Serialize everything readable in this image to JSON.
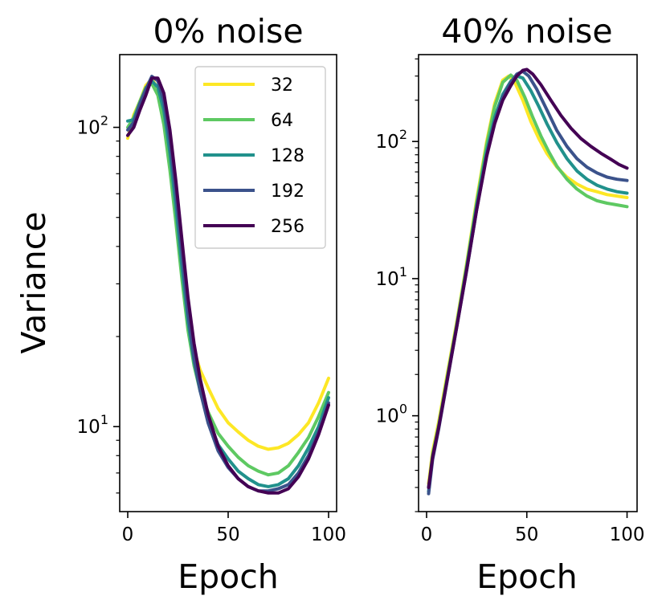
{
  "figure": {
    "ylabel": "Variance"
  },
  "chart_data": [
    {
      "type": "line",
      "title": "0% noise",
      "xlabel": "Epoch",
      "ylabel": "Variance",
      "yscale": "log",
      "xlim": [
        -4,
        104
      ],
      "ylim": [
        5.2,
        175
      ],
      "xticks": [
        0,
        50,
        100
      ],
      "yticks": [
        {
          "value": 10,
          "base": "10",
          "exp": "1"
        },
        {
          "value": 100,
          "base": "10",
          "exp": "2"
        }
      ],
      "legend": {
        "position": "top-right"
      },
      "series": [
        {
          "name": "32",
          "color": "#fde725",
          "x": [
            0,
            3,
            6,
            9,
            12,
            15,
            18,
            21,
            24,
            27,
            30,
            33,
            36,
            40,
            45,
            50,
            55,
            60,
            65,
            70,
            75,
            80,
            85,
            90,
            95,
            100
          ],
          "y": [
            92,
            110,
            122,
            138,
            145,
            135,
            112,
            82,
            56,
            36,
            24,
            18,
            15.5,
            13.5,
            11.5,
            10.3,
            9.6,
            9.0,
            8.6,
            8.4,
            8.5,
            8.8,
            9.4,
            10.3,
            12,
            14.5
          ]
        },
        {
          "name": "64",
          "color": "#5ec962",
          "x": [
            0,
            3,
            6,
            9,
            12,
            15,
            18,
            21,
            24,
            27,
            30,
            33,
            36,
            40,
            45,
            50,
            55,
            60,
            65,
            70,
            75,
            80,
            85,
            90,
            95,
            100
          ],
          "y": [
            100,
            108,
            122,
            136,
            140,
            128,
            102,
            72,
            48,
            31,
            21,
            16,
            13.2,
            11.2,
            9.5,
            8.6,
            7.9,
            7.4,
            7.1,
            6.9,
            7.0,
            7.4,
            8.2,
            9.2,
            10.8,
            13
          ]
        },
        {
          "name": "128",
          "color": "#21918c",
          "x": [
            0,
            3,
            6,
            9,
            12,
            15,
            18,
            21,
            24,
            27,
            30,
            33,
            36,
            40,
            45,
            50,
            55,
            60,
            65,
            70,
            75,
            80,
            85,
            90,
            95,
            100
          ],
          "y": [
            105,
            106,
            120,
            132,
            143,
            136,
            114,
            82,
            54,
            34,
            22.5,
            16.5,
            13.2,
            10.6,
            8.7,
            7.8,
            7.1,
            6.7,
            6.4,
            6.3,
            6.4,
            6.7,
            7.4,
            8.5,
            10,
            12.5
          ]
        },
        {
          "name": "192",
          "color": "#3b528b",
          "x": [
            0,
            3,
            6,
            9,
            12,
            15,
            18,
            21,
            24,
            27,
            30,
            33,
            36,
            40,
            45,
            50,
            55,
            60,
            65,
            70,
            75,
            80,
            85,
            90,
            95,
            100
          ],
          "y": [
            98,
            104,
            120,
            134,
            148,
            143,
            122,
            90,
            60,
            38,
            24,
            17,
            13.2,
            10.3,
            8.3,
            7.3,
            6.7,
            6.3,
            6.1,
            6.1,
            6.2,
            6.4,
            7.0,
            8.0,
            9.6,
            12
          ]
        },
        {
          "name": "256",
          "color": "#440154",
          "x": [
            0,
            3,
            6,
            9,
            12,
            15,
            18,
            21,
            24,
            27,
            30,
            33,
            36,
            40,
            45,
            50,
            55,
            60,
            65,
            70,
            75,
            80,
            85,
            90,
            95,
            100
          ],
          "y": [
            94,
            100,
            114,
            128,
            146,
            146,
            130,
            98,
            66,
            42,
            27,
            19,
            14.5,
            11,
            8.6,
            7.4,
            6.7,
            6.3,
            6.1,
            6.0,
            6.0,
            6.2,
            6.8,
            7.8,
            9.4,
            11.8
          ]
        }
      ]
    },
    {
      "type": "line",
      "title": "40% noise",
      "xlabel": "Epoch",
      "ylabel": "",
      "yscale": "log",
      "xlim": [
        -4,
        105
      ],
      "ylim": [
        0.2,
        430
      ],
      "xticks": [
        0,
        50,
        100
      ],
      "yticks": [
        {
          "value": 1,
          "base": "10",
          "exp": "0"
        },
        {
          "value": 10,
          "base": "10",
          "exp": "1"
        },
        {
          "value": 100,
          "base": "10",
          "exp": "2"
        }
      ],
      "legend": null,
      "series": [
        {
          "name": "32",
          "color": "#fde725",
          "x": [
            1,
            3,
            6,
            10,
            15,
            20,
            25,
            30,
            34,
            38,
            41,
            44,
            48,
            52,
            56,
            60,
            65,
            70,
            75,
            80,
            85,
            90,
            95,
            100
          ],
          "y": [
            0.32,
            0.55,
            0.9,
            1.9,
            4.8,
            13,
            38,
            100,
            190,
            280,
            300,
            270,
            200,
            140,
            105,
            82,
            65,
            55,
            49,
            45,
            43,
            41,
            40,
            39
          ]
        },
        {
          "name": "64",
          "color": "#5ec962",
          "x": [
            1,
            3,
            6,
            10,
            15,
            20,
            25,
            30,
            34,
            38,
            42,
            45,
            49,
            53,
            57,
            61,
            65,
            70,
            75,
            80,
            85,
            90,
            95,
            100
          ],
          "y": [
            0.3,
            0.52,
            0.85,
            1.8,
            4.6,
            12.5,
            36,
            95,
            180,
            270,
            305,
            280,
            210,
            150,
            110,
            84,
            66,
            53,
            45,
            40,
            37,
            35.5,
            34.5,
            33.5
          ]
        },
        {
          "name": "128",
          "color": "#21918c",
          "x": [
            1,
            3,
            6,
            10,
            15,
            20,
            25,
            30,
            34,
            38,
            42,
            45,
            48,
            52,
            56,
            60,
            65,
            70,
            75,
            80,
            85,
            90,
            95,
            100
          ],
          "y": [
            0.28,
            0.5,
            0.82,
            1.75,
            4.5,
            12,
            34,
            85,
            150,
            220,
            275,
            300,
            290,
            235,
            180,
            135,
            98,
            75,
            61,
            53,
            48,
            45,
            43,
            42
          ]
        },
        {
          "name": "192",
          "color": "#3b528b",
          "x": [
            1,
            3,
            6,
            10,
            15,
            20,
            25,
            30,
            34,
            38,
            42,
            45,
            48,
            51,
            55,
            60,
            65,
            70,
            75,
            80,
            85,
            90,
            95,
            100
          ],
          "y": [
            0.27,
            0.48,
            0.8,
            1.7,
            4.4,
            11.5,
            32,
            80,
            140,
            210,
            270,
            310,
            325,
            300,
            240,
            170,
            120,
            92,
            75,
            65,
            59,
            55,
            53,
            52
          ]
        },
        {
          "name": "256",
          "color": "#440154",
          "x": [
            1,
            3,
            6,
            10,
            15,
            20,
            25,
            30,
            34,
            38,
            42,
            45,
            48,
            50,
            53,
            57,
            62,
            67,
            72,
            77,
            82,
            87,
            92,
            96,
            100
          ],
          "y": [
            0.3,
            0.5,
            0.82,
            1.72,
            4.4,
            11.6,
            32,
            78,
            135,
            200,
            255,
            300,
            330,
            335,
            310,
            260,
            200,
            155,
            125,
            105,
            92,
            82,
            74,
            68,
            64
          ]
        }
      ]
    }
  ]
}
